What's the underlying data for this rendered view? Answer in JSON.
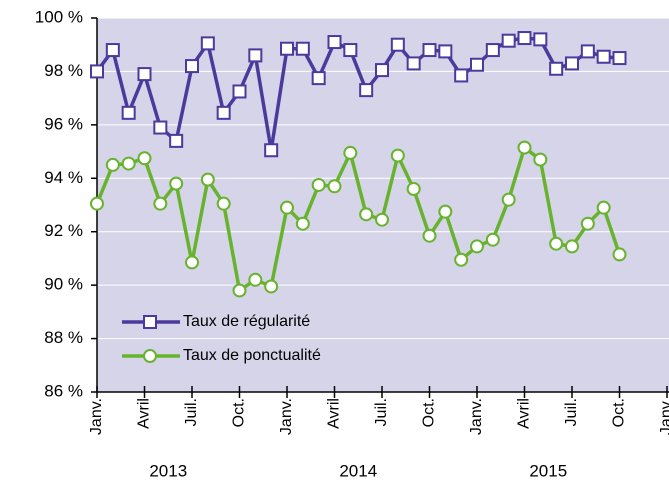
{
  "chart_data": {
    "type": "line",
    "categories": [
      "Janv.",
      null,
      null,
      "Avril",
      null,
      null,
      "Juil.",
      null,
      null,
      "Oct.",
      null,
      null,
      "Janv.",
      null,
      null,
      "Avril",
      null,
      null,
      "Juil.",
      null,
      null,
      "Oct.",
      null,
      null,
      "Janv.",
      null,
      null,
      "Avril",
      null,
      null,
      "Juil.",
      null,
      null,
      "Oct.",
      null,
      null,
      "Janv."
    ],
    "year_labels": [
      "2013",
      "2014",
      "2015"
    ],
    "series": [
      {
        "name": "Taux de régularité",
        "color": "#4b3a9c",
        "marker": "square",
        "values": [
          98.0,
          98.8,
          96.45,
          97.9,
          95.9,
          95.4,
          98.2,
          99.05,
          96.45,
          97.25,
          98.6,
          95.05,
          98.85,
          98.85,
          97.75,
          99.1,
          98.8,
          97.3,
          98.05,
          99.0,
          98.3,
          98.8,
          98.75,
          97.85,
          98.25,
          98.8,
          99.15,
          99.25,
          99.2,
          98.1,
          98.3,
          98.75,
          98.55,
          98.5,
          null,
          null,
          null
        ]
      },
      {
        "name": "Taux de ponctualité",
        "color": "#67b32e",
        "marker": "circle",
        "values": [
          93.05,
          94.5,
          94.55,
          94.75,
          93.05,
          93.8,
          90.85,
          93.95,
          93.05,
          89.8,
          90.2,
          89.95,
          92.9,
          92.3,
          93.75,
          93.7,
          94.95,
          92.65,
          92.45,
          94.85,
          93.6,
          91.85,
          92.75,
          90.95,
          91.45,
          91.7,
          93.2,
          95.15,
          94.7,
          91.55,
          91.45,
          92.3,
          92.9,
          91.15,
          null,
          null,
          null
        ]
      }
    ],
    "ylim": [
      86,
      100
    ],
    "yticks": [
      {
        "value": 86,
        "label": "86 %"
      },
      {
        "value": 88,
        "label": "88 %"
      },
      {
        "value": 90,
        "label": "90 %"
      },
      {
        "value": 92,
        "label": "92 %"
      },
      {
        "value": 94,
        "label": "94 %"
      },
      {
        "value": 96,
        "label": "96 %"
      },
      {
        "value": 98,
        "label": "98 %"
      },
      {
        "value": 100,
        "label": "100 %"
      }
    ],
    "grid": true,
    "legend": "lower left",
    "background": "#d6d4e9"
  }
}
